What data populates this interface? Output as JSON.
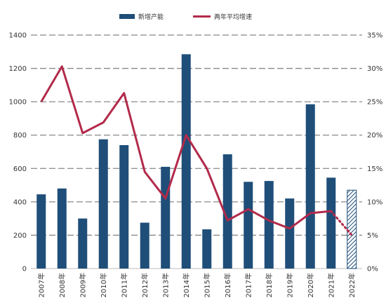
{
  "chart_data": {
    "type": "bar",
    "categories": [
      "2007年",
      "2008年",
      "2009年",
      "2010年",
      "2011年",
      "2012年",
      "2013年",
      "2014年",
      "2015年",
      "2016年",
      "2017年",
      "2018年",
      "2019年",
      "2020年",
      "2021年",
      "2022年"
    ],
    "series": [
      {
        "name": "新增产能",
        "type": "bar",
        "axis": "left",
        "color": "#1f4e79",
        "values": [
          445,
          480,
          300,
          775,
          740,
          275,
          610,
          1285,
          235,
          685,
          520,
          525,
          420,
          985,
          545,
          470
        ],
        "last_bar_style": "hatched"
      },
      {
        "name": "两年平均增速",
        "type": "line",
        "axis": "right",
        "color": "#b22a4a",
        "values": [
          25.0,
          30.3,
          20.3,
          21.9,
          26.3,
          14.5,
          10.5,
          20.0,
          15.0,
          7.2,
          8.9,
          7.2,
          6.0,
          8.3,
          8.6,
          5.0
        ],
        "last_segment_style": "dotted"
      }
    ],
    "ylim_left": [
      0,
      1400
    ],
    "yticks_left": [
      "0",
      "200",
      "400",
      "600",
      "800",
      "1000",
      "1200",
      "1400"
    ],
    "ylim_right": [
      0,
      35
    ],
    "yticks_right": [
      "0%",
      "5%",
      "10%",
      "15%",
      "20%",
      "25%",
      "30%",
      "35%"
    ],
    "grid": "horizontal-dashed",
    "legend_position": "top-center"
  }
}
